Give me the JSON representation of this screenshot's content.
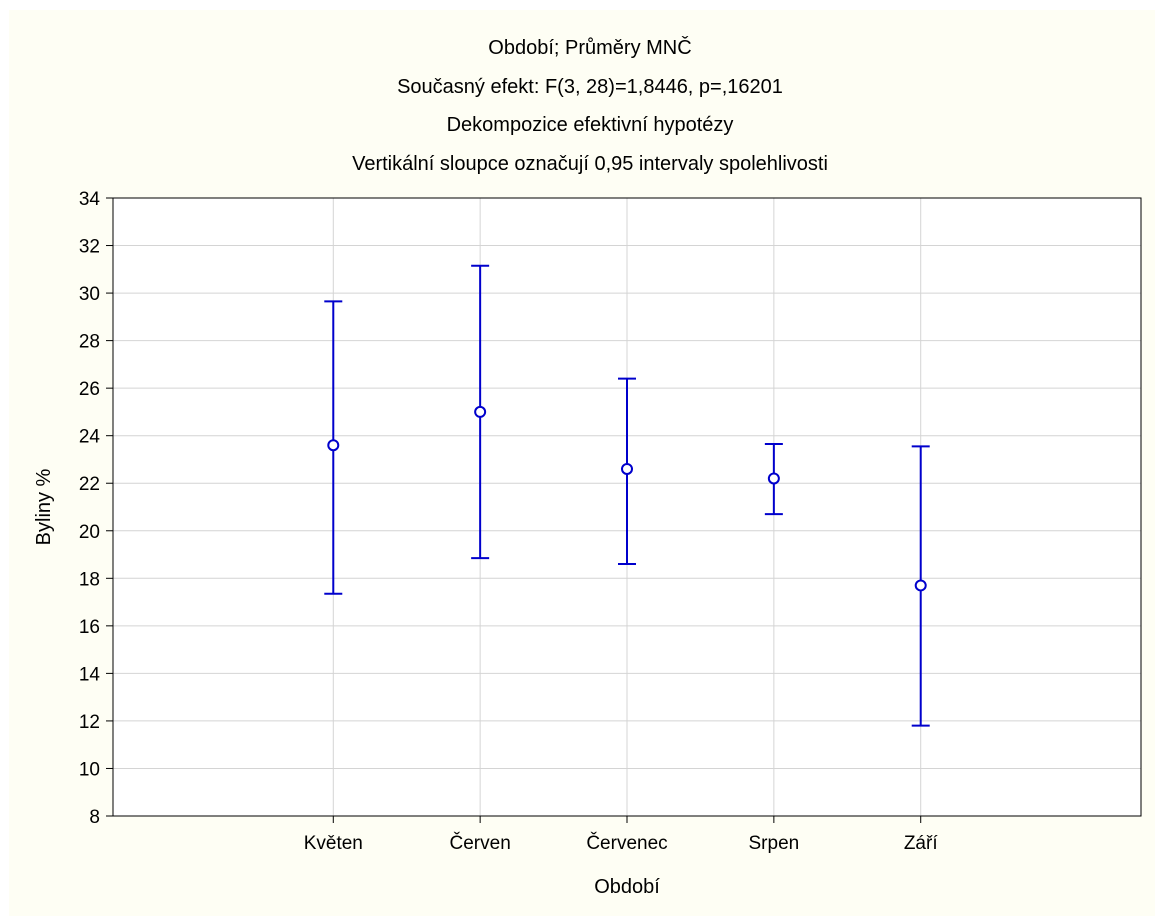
{
  "chart_data": {
    "type": "scatter",
    "title": "Období; Průměry MNČ",
    "subtitle_lines": [
      "Současný efekt: F(3, 28)=1,8446, p=,16201",
      "Dekompozice efektivní hypotézy",
      "Vertikální sloupce označují 0,95 intervaly spolehlivosti"
    ],
    "xlabel": "Období",
    "ylabel": "Byliny %",
    "categories": [
      "Květen",
      "Červen",
      "Červenec",
      "Srpen",
      "Září"
    ],
    "series": [
      {
        "means": [
          23.6,
          25.0,
          22.6,
          22.2,
          17.7
        ],
        "ci_lower": [
          17.35,
          18.85,
          18.6,
          20.7,
          11.8
        ],
        "ci_upper": [
          29.65,
          31.15,
          26.4,
          23.65,
          23.55
        ]
      }
    ],
    "ylim": [
      8,
      34
    ],
    "yticks": [
      8,
      10,
      12,
      14,
      16,
      18,
      20,
      22,
      24,
      26,
      28,
      30,
      32,
      34
    ],
    "grid": true,
    "legend": "none",
    "colors": {
      "series": "#0000cc",
      "grid": "#d4d4d4",
      "background": "#fefef4",
      "plot_background": "#ffffff"
    }
  }
}
